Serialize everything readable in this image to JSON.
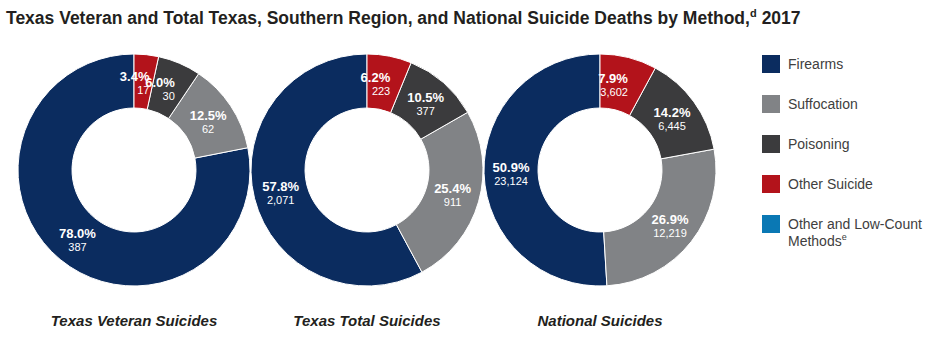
{
  "chart_data": {
    "type": "pie",
    "title": "Texas Veteran and Total Texas, Southern Region, and National Suicide Deaths by Method,",
    "title_footnote": "d",
    "title_year": "2017",
    "categories": [
      "Firearms",
      "Suffocation",
      "Poisoning",
      "Other Suicide",
      "Other and Low-Count Methods"
    ],
    "legend_footnotes": [
      null,
      null,
      null,
      null,
      "e"
    ],
    "colors": [
      "#0b2c5f",
      "#818386",
      "#3b3b3d",
      "#b3131b",
      "#0a78b4"
    ],
    "legend": "right",
    "data_labels": true,
    "series": [
      {
        "name": "Texas Veteran Suicides",
        "values": [
          78.0,
          12.5,
          6.0,
          3.4,
          null
        ],
        "value_labels": [
          "78.0%",
          "12.5%",
          "6.0%",
          "3.4%",
          null
        ],
        "counts": [
          387,
          62,
          30,
          17,
          null
        ],
        "count_labels": [
          "387",
          "62",
          "30",
          "17",
          null
        ]
      },
      {
        "name": "Texas Total Suicides",
        "values": [
          57.8,
          25.4,
          10.5,
          6.2,
          null
        ],
        "value_labels": [
          "57.8%",
          "25.4%",
          "10.5%",
          "6.2%",
          null
        ],
        "counts": [
          2071,
          911,
          377,
          223,
          null
        ],
        "count_labels": [
          "2,071",
          "911",
          "377",
          "223",
          null
        ]
      },
      {
        "name": "National Suicides",
        "values": [
          50.9,
          26.9,
          14.2,
          7.9,
          null
        ],
        "value_labels": [
          "50.9%",
          "26.9%",
          "14.2%",
          "7.9%",
          null
        ],
        "counts": [
          23124,
          12219,
          6445,
          3602,
          null
        ],
        "count_labels": [
          "23,124",
          "12,219",
          "6,445",
          "3,602",
          null
        ]
      }
    ]
  }
}
